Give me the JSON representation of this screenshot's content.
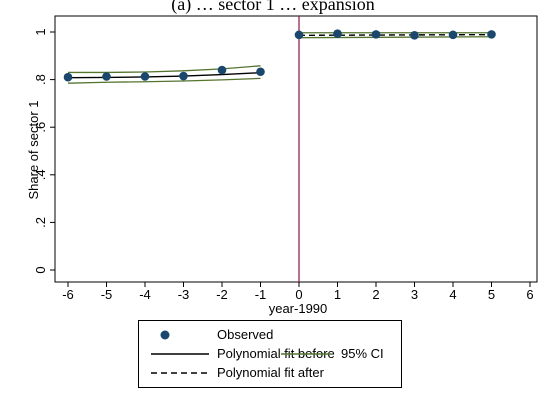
{
  "chart_data": {
    "type": "scatter",
    "title": "(a) … sector 1 … expansion",
    "xlabel": "year-1990",
    "ylabel": "Share of sector 1",
    "xlim": [
      -6,
      6
    ],
    "ylim": [
      0,
      1
    ],
    "x_ticks": [
      "-6",
      "-5",
      "-4",
      "-3",
      "-2",
      "-1",
      "0",
      "1",
      "2",
      "3",
      "4",
      "5",
      "6"
    ],
    "y_ticks": [
      "0",
      ".2",
      ".4",
      ".6",
      ".8",
      "1"
    ],
    "vline_x": 0,
    "grid": false,
    "legend_position": "bottom",
    "observed": {
      "x": [
        -6,
        -5,
        -4,
        -3,
        -2,
        -1,
        0,
        1,
        2,
        3,
        4,
        5
      ],
      "y": [
        0.81,
        0.813,
        0.813,
        0.815,
        0.84,
        0.833,
        0.988,
        0.993,
        0.99,
        0.986,
        0.988,
        0.99
      ]
    },
    "fit_before": {
      "x": [
        -6,
        -5,
        -4,
        -3,
        -2,
        -1
      ],
      "y": [
        0.808,
        0.809,
        0.811,
        0.815,
        0.821,
        0.829
      ]
    },
    "ci_before_upper": {
      "x": [
        -6,
        -5,
        -4,
        -3,
        -2,
        -1
      ],
      "y": [
        0.83,
        0.83,
        0.832,
        0.837,
        0.845,
        0.858
      ]
    },
    "ci_before_lower": {
      "x": [
        -6,
        -5,
        -4,
        -3,
        -2,
        -1
      ],
      "y": [
        0.785,
        0.789,
        0.791,
        0.794,
        0.799,
        0.805
      ]
    },
    "fit_after": {
      "x": [
        0,
        5
      ],
      "y": [
        0.986,
        0.989
      ]
    },
    "ci_after_upper": {
      "x": [
        0,
        5
      ],
      "y": [
        0.997,
        0.997
      ]
    },
    "ci_after_lower": {
      "x": [
        0,
        5
      ],
      "y": [
        0.976,
        0.98
      ]
    },
    "colors": {
      "observed": "#1a476f",
      "fit_before": "#000000",
      "fit_after": "#000000",
      "ci": "#55752f",
      "vline": "#a31e52"
    }
  },
  "legend": {
    "observed": "Observed",
    "fit_before": "Polynomial fit before",
    "ci": "95% CI",
    "fit_after": "Polynomial fit after"
  }
}
